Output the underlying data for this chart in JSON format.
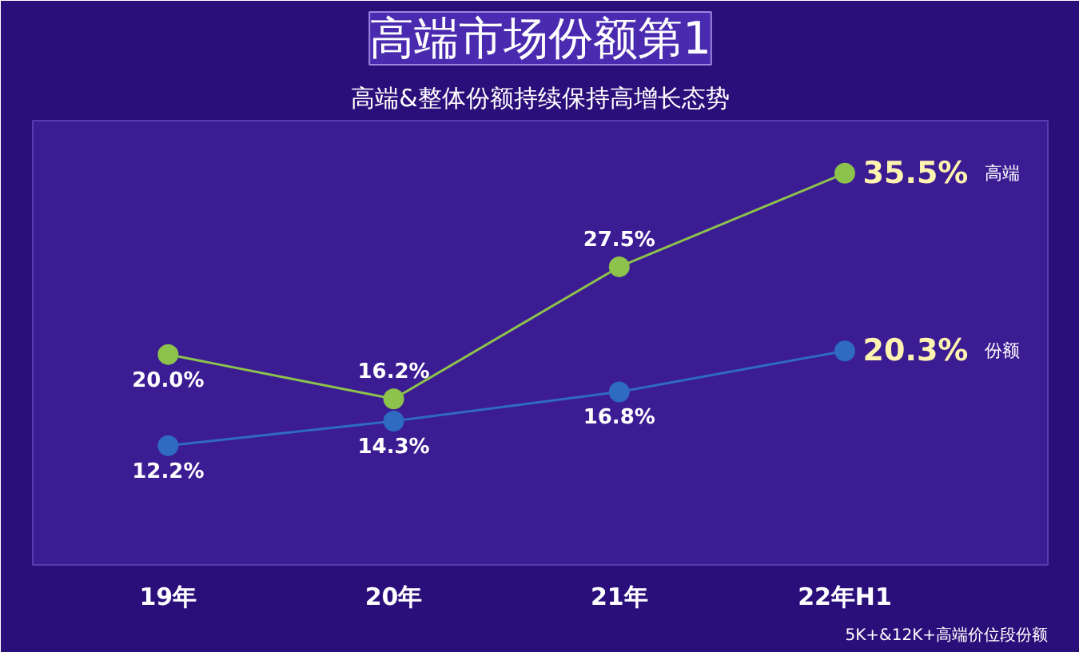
{
  "chart_data": {
    "type": "line",
    "title": "高端市场份额第1",
    "subtitle": "高端&整体份额持续保持高增长态势",
    "categories": [
      "19年",
      "20年",
      "21年",
      "22年H1"
    ],
    "ylim": [
      2,
      40
    ],
    "grid": false,
    "marker": "circle",
    "line_style": "solid",
    "series": [
      {
        "name": "高端",
        "color": "#8dc24c",
        "values": [
          20.0,
          16.2,
          27.5,
          35.5
        ],
        "value_labels": [
          "20.0%",
          "16.2%",
          "27.5%",
          "35.5%"
        ]
      },
      {
        "name": "份额",
        "color": "#2f6bc0",
        "values": [
          12.2,
          14.3,
          16.8,
          20.3
        ],
        "value_labels": [
          "12.2%",
          "14.3%",
          "16.8%",
          "20.3%"
        ]
      }
    ],
    "annotations": [
      "5K+&12K+高端价位段份额"
    ]
  }
}
